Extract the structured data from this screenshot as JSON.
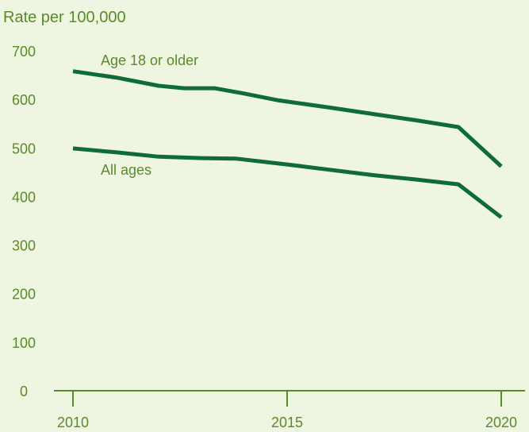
{
  "chart_data": {
    "type": "line",
    "ylabel": "Rate per 100,000",
    "xlabel": "",
    "ylim": [
      0,
      700
    ],
    "xlim": [
      2010,
      2020
    ],
    "y_ticks": [
      "0",
      "100",
      "200",
      "300",
      "400",
      "500",
      "600",
      "700"
    ],
    "x_ticks": [
      "2010",
      "2015",
      "2020"
    ],
    "grid": false,
    "line_color": "#0f6b3a",
    "series": [
      {
        "name": "Age 18 or older",
        "x": [
          2010,
          2011,
          2012,
          2012.6,
          2013.3,
          2014,
          2014.8,
          2016,
          2017,
          2018,
          2019,
          2020
        ],
        "values": [
          658,
          645,
          628,
          623,
          623,
          612,
          598,
          583,
          570,
          557,
          543,
          462
        ]
      },
      {
        "name": "All ages",
        "x": [
          2010,
          2011,
          2012,
          2013,
          2013.8,
          2015,
          2016,
          2017,
          2018,
          2019,
          2020
        ],
        "values": [
          499,
          491,
          482,
          479,
          478,
          466,
          455,
          444,
          435,
          425,
          357
        ]
      }
    ]
  }
}
